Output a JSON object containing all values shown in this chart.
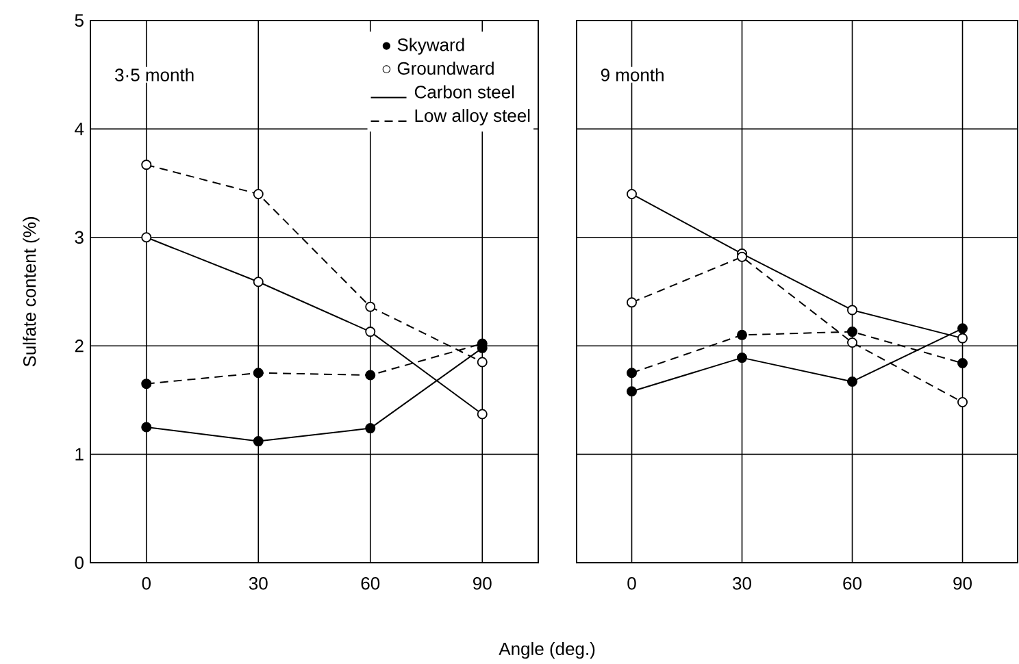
{
  "chart_data": [
    {
      "type": "line",
      "xlabel": "Angle (deg.)",
      "ylabel": "Sulfate content (%)",
      "annotations": [
        "3·5 month",
        "●  Skyward",
        "○  Groundward",
        "Carbon steel",
        "Low alloy steel"
      ],
      "x": [
        0,
        30,
        60,
        90
      ],
      "xlim": [
        -15,
        105
      ],
      "ylim": [
        0,
        5
      ],
      "xticks": [
        0,
        30,
        60,
        90
      ],
      "yticks": [
        0,
        1,
        2,
        3,
        4,
        5
      ],
      "grid": true,
      "marker": "circle",
      "series": [
        {
          "color": "#000000",
          "line_style": "solid",
          "values": [
            1.25,
            1.12,
            1.24,
            1.98
          ]
        },
        {
          "color": "#ffffff",
          "line_style": "solid",
          "values": [
            3.0,
            2.59,
            2.13,
            1.37
          ]
        },
        {
          "color": "#000000",
          "line_style": "dashed",
          "values": [
            1.65,
            1.75,
            1.73,
            2.02
          ]
        },
        {
          "color": "#ffffff",
          "line_style": "dashed",
          "values": [
            3.67,
            3.4,
            2.36,
            1.85
          ]
        }
      ]
    },
    {
      "type": "line",
      "annotations": [
        "9 month"
      ],
      "x": [
        0,
        30,
        60,
        90
      ],
      "xlim": [
        -15,
        105
      ],
      "ylim": [
        0,
        5
      ],
      "xticks": [
        0,
        30,
        60,
        90
      ],
      "yticks": [
        0,
        1,
        2,
        3,
        4,
        5
      ],
      "grid": true,
      "tick_labels": "x",
      "marker": "circle",
      "series": [
        {
          "color": "#000000",
          "line_style": "solid",
          "values": [
            1.58,
            1.89,
            1.67,
            2.16
          ]
        },
        {
          "color": "#ffffff",
          "line_style": "solid",
          "values": [
            3.4,
            2.85,
            2.33,
            2.07
          ]
        },
        {
          "color": "#000000",
          "line_style": "dashed",
          "values": [
            1.75,
            2.1,
            2.13,
            1.84
          ]
        },
        {
          "color": "#ffffff",
          "line_style": "dashed",
          "values": [
            2.4,
            2.82,
            2.03,
            1.48
          ]
        }
      ]
    }
  ]
}
